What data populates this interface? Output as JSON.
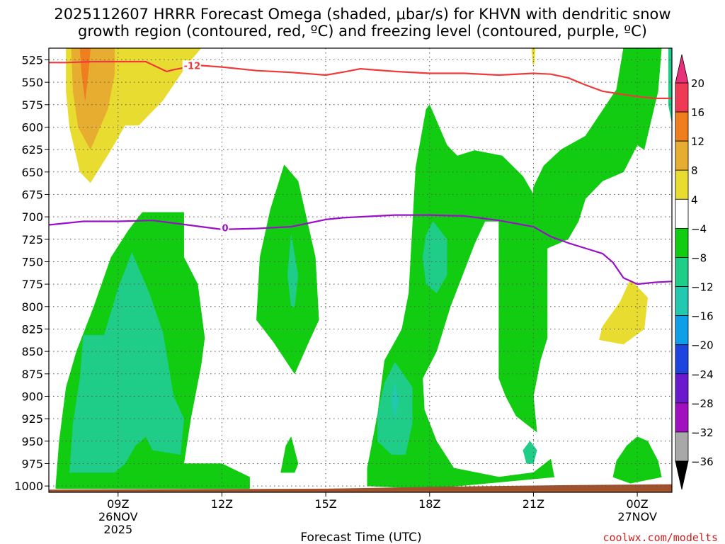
{
  "chart_data": {
    "type": "heatmap",
    "title_line1": "2025112607 HRRR Forecast Omega (shaded, μbar/s) for KHVN with dendritic snow",
    "title_line2": "growth region (contoured, red, ºC) and freezing level (contoured, purple, ºC)",
    "xlabel": "Forecast Time (UTC)",
    "credit": "coolwx.com/modelts",
    "x_range_hours": [
      7,
      25
    ],
    "y_range_mb": [
      512,
      1007
    ],
    "x_ticks": [
      {
        "hour": 9,
        "label": "09Z",
        "sub1": "26NOV",
        "sub2": "2025"
      },
      {
        "hour": 12,
        "label": "12Z",
        "sub1": "",
        "sub2": ""
      },
      {
        "hour": 15,
        "label": "15Z",
        "sub1": "",
        "sub2": ""
      },
      {
        "hour": 18,
        "label": "18Z",
        "sub1": "",
        "sub2": ""
      },
      {
        "hour": 21,
        "label": "21Z",
        "sub1": "",
        "sub2": ""
      },
      {
        "hour": 24,
        "label": "00Z",
        "sub1": "27NOV",
        "sub2": ""
      }
    ],
    "y_ticks": [
      525,
      550,
      575,
      600,
      625,
      650,
      675,
      700,
      725,
      750,
      775,
      800,
      825,
      850,
      875,
      900,
      925,
      950,
      975,
      1000
    ],
    "y_tick_labels": [
      "525",
      "550",
      "575",
      "600",
      "625",
      "650",
      "675",
      "700",
      "725",
      "750",
      "775",
      "800",
      "825",
      "850",
      "875",
      "900",
      "925",
      "950",
      "975",
      "1000"
    ],
    "colorbar": {
      "labels": [
        "20",
        "16",
        "12",
        "8",
        "4",
        "−4",
        "−8",
        "−12",
        "−16",
        "−20",
        "−24",
        "−28",
        "−32",
        "−36"
      ],
      "colors": [
        "#ee3a55",
        "#f07d1e",
        "#e6ad30",
        "#e8dc30",
        "#ffffff",
        "#11cc11",
        "#1fcc88",
        "#22c8b0",
        "#0f9ee8",
        "#1e44e0",
        "#6a1acc",
        "#a010c0",
        "#a8a8a8"
      ],
      "top_arrow_color": "#e8307a",
      "bottom_arrow_color": "#000000"
    },
    "omega_regions": [
      {
        "name": "yellow-region-top-left",
        "color": "#e8dc30",
        "points": [
          [
            7.5,
            512
          ],
          [
            10.2,
            512
          ],
          [
            10.0,
            530
          ],
          [
            9.6,
            560
          ],
          [
            9.2,
            598
          ],
          [
            8.8,
            625
          ],
          [
            8.2,
            662
          ],
          [
            7.9,
            650
          ],
          [
            7.6,
            600
          ],
          [
            7.5,
            560
          ]
        ]
      },
      {
        "name": "yellow-region-mid",
        "color": "#e8dc30",
        "points": [
          [
            10.2,
            512
          ],
          [
            11.4,
            512
          ],
          [
            11.0,
            530
          ],
          [
            10.3,
            570
          ],
          [
            9.6,
            598
          ],
          [
            9.2,
            598
          ],
          [
            9.6,
            560
          ],
          [
            10.0,
            530
          ]
        ]
      },
      {
        "name": "yellow-region-bump",
        "color": "#e8dc30",
        "points": [
          [
            23.0,
            822
          ],
          [
            23.5,
            795
          ],
          [
            23.8,
            770
          ],
          [
            24.3,
            790
          ],
          [
            24.2,
            825
          ],
          [
            23.6,
            842
          ],
          [
            22.9,
            837
          ]
        ]
      },
      {
        "name": "yellow-region-sliver",
        "color": "#e8dc30",
        "points": [
          [
            20.95,
            512
          ],
          [
            21.05,
            512
          ],
          [
            21.02,
            530
          ],
          [
            20.98,
            530
          ]
        ]
      },
      {
        "name": "orange-region",
        "color": "#e6ad30",
        "points": [
          [
            7.65,
            512
          ],
          [
            8.9,
            512
          ],
          [
            8.9,
            540
          ],
          [
            8.7,
            580
          ],
          [
            8.2,
            625
          ],
          [
            7.85,
            600
          ],
          [
            7.7,
            560
          ]
        ]
      },
      {
        "name": "dark-orange-region",
        "color": "#f07d1e",
        "points": [
          [
            7.9,
            512
          ],
          [
            8.2,
            512
          ],
          [
            8.15,
            535
          ],
          [
            8.05,
            570
          ],
          [
            7.95,
            540
          ]
        ]
      },
      {
        "name": "green-region-left",
        "color": "#11cc11",
        "points": [
          [
            7.2,
            1000
          ],
          [
            7.3,
            950
          ],
          [
            7.5,
            890
          ],
          [
            7.8,
            850
          ],
          [
            8.3,
            800
          ],
          [
            8.8,
            745
          ],
          [
            9.3,
            715
          ],
          [
            9.7,
            695
          ],
          [
            10.9,
            695
          ],
          [
            10.9,
            745
          ],
          [
            11.3,
            775
          ],
          [
            11.5,
            835
          ],
          [
            11.4,
            865
          ],
          [
            11.1,
            925
          ],
          [
            10.9,
            975
          ],
          [
            12.0,
            975
          ],
          [
            12.8,
            990
          ],
          [
            12.8,
            1003
          ],
          [
            8.5,
            1003
          ],
          [
            7.2,
            1003
          ]
        ]
      },
      {
        "name": "green-region-col14",
        "color": "#11cc11",
        "points": [
          [
            13.0,
            815
          ],
          [
            13.1,
            745
          ],
          [
            13.4,
            692
          ],
          [
            13.8,
            642
          ],
          [
            14.2,
            660
          ],
          [
            14.7,
            745
          ],
          [
            14.8,
            815
          ],
          [
            14.5,
            840
          ],
          [
            14.1,
            875
          ],
          [
            13.5,
            840
          ]
        ]
      },
      {
        "name": "green-region-speck",
        "color": "#11cc11",
        "points": [
          [
            13.7,
            985
          ],
          [
            13.85,
            955
          ],
          [
            14.0,
            945
          ],
          [
            14.2,
            975
          ],
          [
            14.1,
            985
          ]
        ]
      },
      {
        "name": "green-region-center",
        "color": "#11cc11",
        "points": [
          [
            16.2,
            980
          ],
          [
            16.5,
            920
          ],
          [
            16.7,
            860
          ],
          [
            17.2,
            825
          ],
          [
            17.4,
            785
          ],
          [
            17.6,
            645
          ],
          [
            17.9,
            580
          ],
          [
            18.0,
            575
          ],
          [
            18.5,
            620
          ],
          [
            18.8,
            632
          ],
          [
            19.3,
            626
          ],
          [
            20.1,
            632
          ],
          [
            20.7,
            655
          ],
          [
            21.0,
            675
          ],
          [
            21.0,
            667
          ],
          [
            21.3,
            643
          ],
          [
            21.8,
            625
          ],
          [
            22.5,
            610
          ],
          [
            23.4,
            558
          ],
          [
            23.6,
            512
          ],
          [
            24.7,
            512
          ],
          [
            24.6,
            560
          ],
          [
            24.2,
            625
          ],
          [
            24.0,
            620
          ],
          [
            23.6,
            650
          ],
          [
            23.0,
            660
          ],
          [
            22.5,
            680
          ],
          [
            22.3,
            705
          ],
          [
            22.0,
            725
          ],
          [
            21.4,
            735
          ],
          [
            21.4,
            760
          ],
          [
            21.4,
            800
          ],
          [
            21.4,
            835
          ],
          [
            21.2,
            860
          ],
          [
            21.0,
            900
          ],
          [
            21.1,
            940
          ],
          [
            20.5,
            922
          ],
          [
            20.2,
            900
          ],
          [
            20.0,
            880
          ],
          [
            20.0,
            810
          ],
          [
            20.0,
            760
          ],
          [
            20.0,
            705
          ],
          [
            19.6,
            705
          ],
          [
            19.3,
            730
          ],
          [
            19.0,
            760
          ],
          [
            18.6,
            800
          ],
          [
            18.2,
            850
          ],
          [
            17.8,
            880
          ],
          [
            17.85,
            915
          ],
          [
            18.2,
            950
          ],
          [
            18.7,
            980
          ],
          [
            20.0,
            990
          ],
          [
            21.0,
            985
          ],
          [
            21.5,
            970
          ],
          [
            21.6,
            990
          ],
          [
            18.0,
            1003
          ],
          [
            16.2,
            1000
          ]
        ]
      },
      {
        "name": "green-region-right-bottom",
        "color": "#11cc11",
        "points": [
          [
            23.3,
            990
          ],
          [
            23.4,
            972
          ],
          [
            23.7,
            955
          ],
          [
            24.0,
            945
          ],
          [
            24.3,
            950
          ],
          [
            24.6,
            972
          ],
          [
            24.7,
            990
          ],
          [
            23.8,
            997
          ]
        ]
      },
      {
        "name": "teal-region-left",
        "color": "#1fcc88",
        "points": [
          [
            7.6,
            985
          ],
          [
            7.7,
            930
          ],
          [
            7.9,
            880
          ],
          [
            8.0,
            832
          ],
          [
            8.6,
            832
          ],
          [
            9.0,
            780
          ],
          [
            9.4,
            740
          ],
          [
            9.9,
            785
          ],
          [
            10.3,
            830
          ],
          [
            10.6,
            900
          ],
          [
            10.9,
            925
          ],
          [
            10.8,
            965
          ],
          [
            10.0,
            960
          ],
          [
            9.8,
            945
          ],
          [
            9.5,
            955
          ],
          [
            9.2,
            975
          ],
          [
            8.9,
            985
          ]
        ]
      },
      {
        "name": "teal-region-col14",
        "color": "#1fcc88",
        "points": [
          [
            13.9,
            765
          ],
          [
            14.0,
            720
          ],
          [
            14.2,
            765
          ],
          [
            14.1,
            800
          ],
          [
            14.0,
            800
          ]
        ]
      },
      {
        "name": "teal-region-center-low",
        "color": "#1fcc88",
        "points": [
          [
            16.5,
            920
          ],
          [
            16.7,
            885
          ],
          [
            17.0,
            862
          ],
          [
            17.5,
            890
          ],
          [
            17.5,
            930
          ],
          [
            17.3,
            965
          ],
          [
            16.9,
            965
          ],
          [
            16.5,
            950
          ]
        ]
      },
      {
        "name": "teal-region-center-high",
        "color": "#1fcc88",
        "points": [
          [
            17.8,
            745
          ],
          [
            17.9,
            720
          ],
          [
            18.1,
            705
          ],
          [
            18.5,
            725
          ],
          [
            18.5,
            765
          ],
          [
            18.2,
            785
          ],
          [
            17.9,
            775
          ]
        ]
      },
      {
        "name": "teal-region-speck",
        "color": "#1fcc88",
        "points": [
          [
            20.7,
            960
          ],
          [
            20.9,
            950
          ],
          [
            21.1,
            960
          ],
          [
            21.0,
            975
          ],
          [
            20.8,
            975
          ]
        ]
      },
      {
        "name": "teal-region-right-edge",
        "color": "#1fcc88",
        "points": [
          [
            24.9,
            512
          ],
          [
            25.0,
            512
          ],
          [
            25.0,
            595
          ],
          [
            24.9,
            575
          ]
        ]
      },
      {
        "name": "blue-streak",
        "color": "#22c8b0",
        "points": [
          [
            16.9,
            905
          ],
          [
            17.0,
            885
          ],
          [
            17.1,
            905
          ],
          [
            17.0,
            925
          ]
        ]
      }
    ],
    "ground": {
      "color": "#a0522d",
      "points": [
        [
          7,
          1007
        ],
        [
          7,
          1004
        ],
        [
          15.0,
          1003
        ],
        [
          18.0,
          1001
        ],
        [
          22.0,
          999
        ],
        [
          25,
          998
        ],
        [
          25,
          1007
        ]
      ]
    },
    "dgz_contour": {
      "label": "-12",
      "color": "#ee3a3a",
      "label_at": [
        10.9,
        532
      ],
      "points": [
        [
          7.0,
          528
        ],
        [
          7.5,
          528
        ],
        [
          8.3,
          527
        ],
        [
          9.8,
          527
        ],
        [
          10.4,
          538
        ],
        [
          10.6,
          536
        ],
        [
          11.3,
          531
        ],
        [
          12.0,
          533
        ],
        [
          13.0,
          537
        ],
        [
          14.0,
          539
        ],
        [
          15.0,
          542
        ],
        [
          15.6,
          538
        ],
        [
          16.0,
          535
        ],
        [
          17.0,
          538
        ],
        [
          18.0,
          540
        ],
        [
          19.0,
          540
        ],
        [
          20.0,
          542
        ],
        [
          21.0,
          540
        ],
        [
          21.5,
          541
        ],
        [
          22.0,
          545
        ],
        [
          22.5,
          553
        ],
        [
          23.0,
          560
        ],
        [
          24.0,
          566
        ],
        [
          24.5,
          568
        ],
        [
          25,
          568
        ]
      ]
    },
    "freezing_contour": {
      "label": "0",
      "color": "#9a10c8",
      "label_at": [
        12.0,
        713
      ],
      "points": [
        [
          7.0,
          709
        ],
        [
          8.0,
          705
        ],
        [
          9.0,
          705
        ],
        [
          10.0,
          704
        ],
        [
          11.0,
          709
        ],
        [
          12.0,
          714
        ],
        [
          13.0,
          713
        ],
        [
          14.0,
          711
        ],
        [
          14.5,
          707
        ],
        [
          15.0,
          703
        ],
        [
          15.5,
          701
        ],
        [
          16.0,
          700
        ],
        [
          17.0,
          698
        ],
        [
          18.0,
          698
        ],
        [
          19.0,
          699
        ],
        [
          20.0,
          704
        ],
        [
          21.0,
          711
        ],
        [
          21.5,
          722
        ],
        [
          22.0,
          729
        ],
        [
          22.5,
          735
        ],
        [
          23.0,
          741
        ],
        [
          23.3,
          751
        ],
        [
          23.6,
          768
        ],
        [
          24.0,
          775
        ],
        [
          24.5,
          773
        ],
        [
          25.0,
          772
        ]
      ]
    }
  }
}
